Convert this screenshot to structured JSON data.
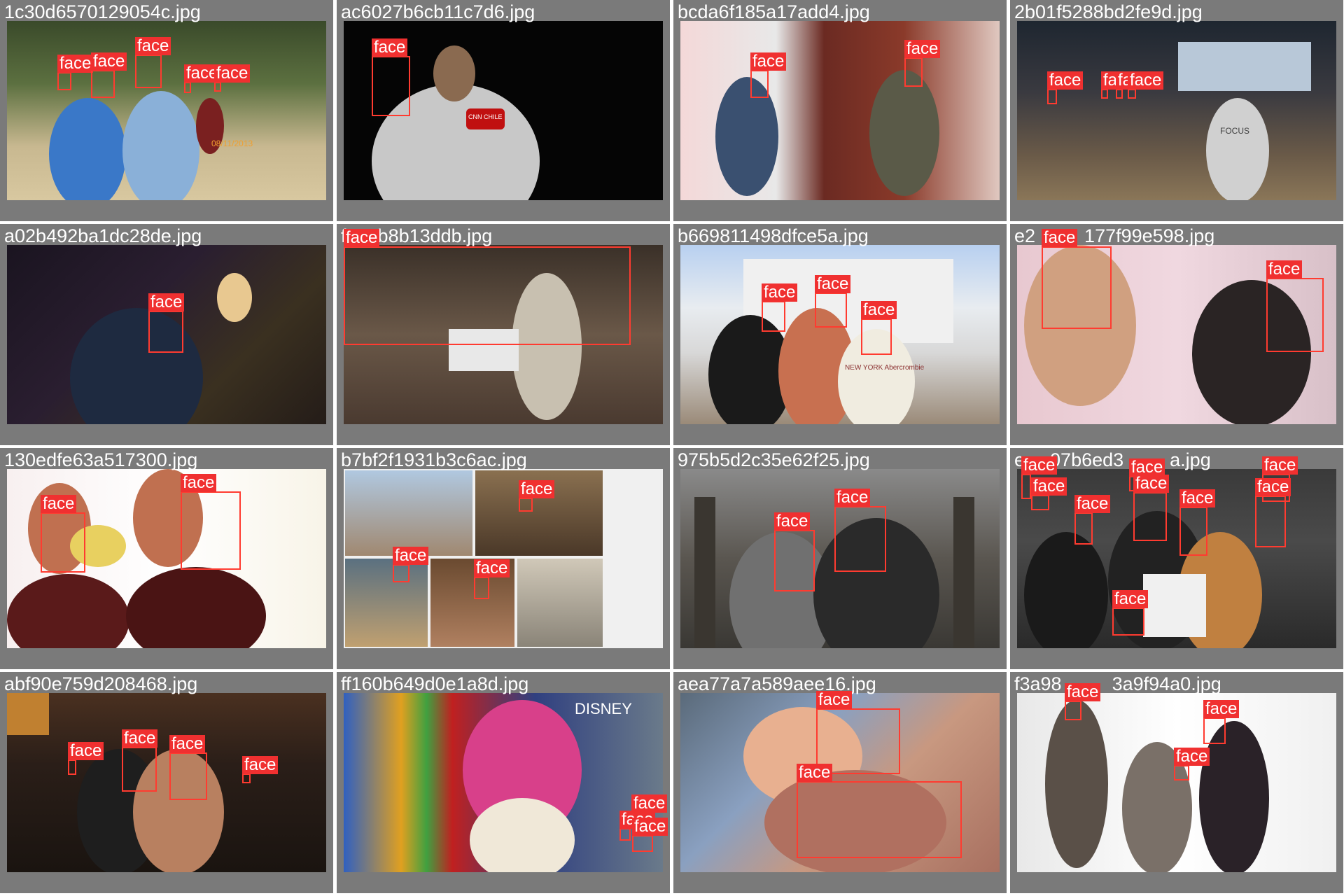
{
  "box_label": "face",
  "colors": {
    "tile_frame": "#7a7a7a",
    "box_border": "#ff3b30",
    "label_bg": "#f03030",
    "label_text": "#ffffff"
  },
  "tiles": [
    {
      "filename": "1c30d6570129054c.jpg",
      "watermark": "08/11/2013"
    },
    {
      "filename": "ac6027b6cb11c7d6.jpg",
      "logo_text": "CNN CHILE"
    },
    {
      "filename": "bcda6f185a17add4.jpg"
    },
    {
      "filename": "2b01f5288bd2fe9d.jpg",
      "shirt_text": "FOCUS"
    },
    {
      "filename": "a02b492ba1dc28de.jpg"
    },
    {
      "filename": "f4a3b8b13ddb.jpg"
    },
    {
      "filename": "b669811498dfce5a.jpg",
      "shirt_text": "NEW YORK Abercrombie"
    },
    {
      "filename": "e2",
      "filename_suffix": "177f99e598.jpg"
    },
    {
      "filename": "130edfe63a517300.jpg"
    },
    {
      "filename": "b7bf2f1931b3c6ac.jpg"
    },
    {
      "filename": "975b5d2c35e62f25.jpg"
    },
    {
      "filename": "e",
      "filename_suffix": "07b6ed3",
      "filename_end": "a.jpg"
    },
    {
      "filename": "abf90e759d208468.jpg"
    },
    {
      "filename": "ff160b649d0e1a8d.jpg",
      "sign_text": "DISNEY"
    },
    {
      "filename": "aea77a7a589aee16.jpg"
    },
    {
      "filename": "f3a98",
      "filename_suffix": "3a9f94a0.jpg"
    }
  ]
}
